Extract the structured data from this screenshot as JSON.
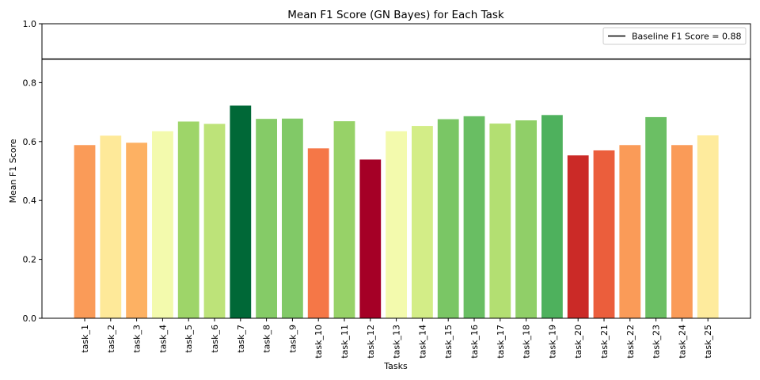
{
  "chart_data": {
    "type": "bar",
    "title": "Mean F1 Score (GN Bayes) for Each Task",
    "xlabel": "Tasks",
    "ylabel": "Mean F1 Score",
    "ylim": [
      0,
      1.0
    ],
    "yticks": [
      "0.0",
      "0.2",
      "0.4",
      "0.6",
      "0.8",
      "1.0"
    ],
    "grid": false,
    "legend_position": "top-right",
    "categories": [
      "task_1",
      "task_2",
      "task_3",
      "task_4",
      "task_5",
      "task_6",
      "task_7",
      "task_8",
      "task_9",
      "task_10",
      "task_11",
      "task_12",
      "task_13",
      "task_14",
      "task_15",
      "task_16",
      "task_17",
      "task_18",
      "task_19",
      "task_20",
      "task_21",
      "task_22",
      "task_23",
      "task_24",
      "task_25"
    ],
    "values": [
      0.588,
      0.62,
      0.596,
      0.635,
      0.668,
      0.66,
      0.722,
      0.677,
      0.678,
      0.577,
      0.669,
      0.539,
      0.635,
      0.653,
      0.676,
      0.686,
      0.661,
      0.672,
      0.69,
      0.553,
      0.57,
      0.588,
      0.683,
      0.588,
      0.621
    ],
    "colors": [
      "#fa9b58",
      "#fee999",
      "#fdb163",
      "#f3faad",
      "#9ed569",
      "#bde379",
      "#006837",
      "#85cb67",
      "#81c967",
      "#f57747",
      "#97d268",
      "#a50026",
      "#f3faad",
      "#d3ed87",
      "#7ac665",
      "#69be63",
      "#b3df72",
      "#90cf68",
      "#4eb15d",
      "#cb2a27",
      "#eb5e3c",
      "#fa9b58",
      "#6bbf64",
      "#fa9b58",
      "#feeb9d"
    ],
    "baseline": {
      "label": "Baseline F1 Score = 0.88",
      "value": 0.88,
      "color": "#000000"
    }
  }
}
